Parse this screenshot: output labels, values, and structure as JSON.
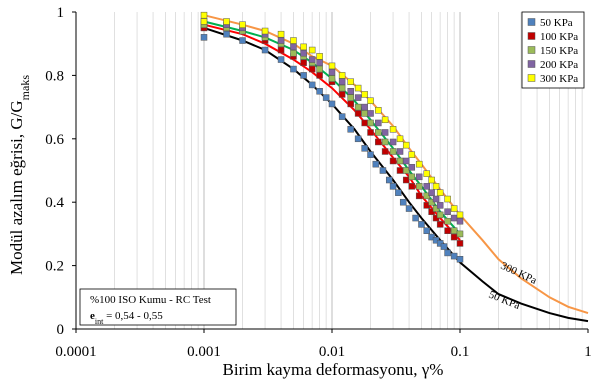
{
  "chart_data": {
    "type": "scatter",
    "x_scale": "log",
    "xlim": [
      0.0001,
      1
    ],
    "ylim": [
      0,
      1
    ],
    "x_ticks": [
      "0.0001",
      "0.001",
      "0.01",
      "0.1",
      "1"
    ],
    "y_ticks": [
      "0",
      "0.2",
      "0.4",
      "0.6",
      "0.8",
      "1"
    ],
    "xlabel": "Birim kayma deformasyonu, γ%",
    "ylabel_main": "Modül azalım eğrisi, G/G",
    "ylabel_sub": "maks",
    "grid": "x-minor-log-only",
    "legend_position": "top-right",
    "series": [
      {
        "name": "50 KPa",
        "color": "#4f81bd",
        "points": [
          [
            0.001,
            0.92
          ],
          [
            0.001,
            0.95
          ],
          [
            0.0015,
            0.93
          ],
          [
            0.002,
            0.91
          ],
          [
            0.003,
            0.88
          ],
          [
            0.004,
            0.85
          ],
          [
            0.005,
            0.82
          ],
          [
            0.006,
            0.8
          ],
          [
            0.007,
            0.77
          ],
          [
            0.008,
            0.75
          ],
          [
            0.009,
            0.73
          ],
          [
            0.01,
            0.71
          ],
          [
            0.012,
            0.67
          ],
          [
            0.014,
            0.63
          ],
          [
            0.016,
            0.6
          ],
          [
            0.018,
            0.57
          ],
          [
            0.02,
            0.55
          ],
          [
            0.022,
            0.52
          ],
          [
            0.025,
            0.5
          ],
          [
            0.028,
            0.47
          ],
          [
            0.03,
            0.45
          ],
          [
            0.033,
            0.43
          ],
          [
            0.036,
            0.4
          ],
          [
            0.04,
            0.38
          ],
          [
            0.045,
            0.35
          ],
          [
            0.05,
            0.33
          ],
          [
            0.055,
            0.31
          ],
          [
            0.06,
            0.29
          ],
          [
            0.065,
            0.28
          ],
          [
            0.07,
            0.27
          ],
          [
            0.075,
            0.26
          ],
          [
            0.08,
            0.24
          ],
          [
            0.09,
            0.23
          ],
          [
            0.1,
            0.22
          ]
        ]
      },
      {
        "name": "100 KPa",
        "color": "#c00000",
        "points": [
          [
            0.001,
            0.95
          ],
          [
            0.0015,
            0.96
          ],
          [
            0.002,
            0.94
          ],
          [
            0.003,
            0.91
          ],
          [
            0.004,
            0.88
          ],
          [
            0.005,
            0.86
          ],
          [
            0.006,
            0.84
          ],
          [
            0.007,
            0.82
          ],
          [
            0.008,
            0.8
          ],
          [
            0.01,
            0.78
          ],
          [
            0.012,
            0.74
          ],
          [
            0.014,
            0.71
          ],
          [
            0.016,
            0.68
          ],
          [
            0.018,
            0.65
          ],
          [
            0.02,
            0.62
          ],
          [
            0.023,
            0.59
          ],
          [
            0.026,
            0.56
          ],
          [
            0.03,
            0.53
          ],
          [
            0.034,
            0.5
          ],
          [
            0.038,
            0.47
          ],
          [
            0.042,
            0.45
          ],
          [
            0.048,
            0.42
          ],
          [
            0.055,
            0.39
          ],
          [
            0.06,
            0.37
          ],
          [
            0.065,
            0.35
          ],
          [
            0.07,
            0.33
          ],
          [
            0.08,
            0.31
          ],
          [
            0.09,
            0.29
          ],
          [
            0.1,
            0.27
          ]
        ]
      },
      {
        "name": "150 KPa",
        "color": "#9bbb59",
        "points": [
          [
            0.001,
            0.96
          ],
          [
            0.0015,
            0.95
          ],
          [
            0.002,
            0.94
          ],
          [
            0.003,
            0.92
          ],
          [
            0.004,
            0.9
          ],
          [
            0.005,
            0.87
          ],
          [
            0.006,
            0.86
          ],
          [
            0.007,
            0.84
          ],
          [
            0.008,
            0.82
          ],
          [
            0.01,
            0.79
          ],
          [
            0.012,
            0.76
          ],
          [
            0.014,
            0.73
          ],
          [
            0.016,
            0.7
          ],
          [
            0.018,
            0.68
          ],
          [
            0.02,
            0.65
          ],
          [
            0.023,
            0.62
          ],
          [
            0.026,
            0.59
          ],
          [
            0.03,
            0.56
          ],
          [
            0.034,
            0.53
          ],
          [
            0.038,
            0.5
          ],
          [
            0.042,
            0.48
          ],
          [
            0.048,
            0.45
          ],
          [
            0.055,
            0.42
          ],
          [
            0.06,
            0.4
          ],
          [
            0.065,
            0.38
          ],
          [
            0.07,
            0.36
          ],
          [
            0.08,
            0.34
          ],
          [
            0.09,
            0.31
          ],
          [
            0.1,
            0.3
          ]
        ]
      },
      {
        "name": "200 KPa",
        "color": "#8064a2",
        "points": [
          [
            0.001,
            0.97
          ],
          [
            0.0015,
            0.96
          ],
          [
            0.002,
            0.95
          ],
          [
            0.003,
            0.93
          ],
          [
            0.004,
            0.91
          ],
          [
            0.005,
            0.89
          ],
          [
            0.006,
            0.87
          ],
          [
            0.007,
            0.85
          ],
          [
            0.008,
            0.84
          ],
          [
            0.01,
            0.81
          ],
          [
            0.012,
            0.78
          ],
          [
            0.014,
            0.75
          ],
          [
            0.016,
            0.73
          ],
          [
            0.018,
            0.7
          ],
          [
            0.02,
            0.68
          ],
          [
            0.023,
            0.65
          ],
          [
            0.026,
            0.62
          ],
          [
            0.03,
            0.59
          ],
          [
            0.034,
            0.56
          ],
          [
            0.038,
            0.53
          ],
          [
            0.042,
            0.51
          ],
          [
            0.048,
            0.48
          ],
          [
            0.055,
            0.45
          ],
          [
            0.06,
            0.43
          ],
          [
            0.065,
            0.41
          ],
          [
            0.07,
            0.39
          ],
          [
            0.08,
            0.37
          ],
          [
            0.09,
            0.35
          ],
          [
            0.1,
            0.34
          ]
        ]
      },
      {
        "name": "300 KPa",
        "color": "#ffff00",
        "points": [
          [
            0.001,
            0.99
          ],
          [
            0.001,
            0.97
          ],
          [
            0.0015,
            0.97
          ],
          [
            0.002,
            0.96
          ],
          [
            0.003,
            0.94
          ],
          [
            0.004,
            0.93
          ],
          [
            0.005,
            0.91
          ],
          [
            0.006,
            0.89
          ],
          [
            0.007,
            0.88
          ],
          [
            0.008,
            0.86
          ],
          [
            0.01,
            0.83
          ],
          [
            0.012,
            0.8
          ],
          [
            0.014,
            0.78
          ],
          [
            0.016,
            0.76
          ],
          [
            0.018,
            0.74
          ],
          [
            0.02,
            0.72
          ],
          [
            0.023,
            0.69
          ],
          [
            0.026,
            0.66
          ],
          [
            0.03,
            0.63
          ],
          [
            0.034,
            0.6
          ],
          [
            0.038,
            0.58
          ],
          [
            0.042,
            0.55
          ],
          [
            0.048,
            0.52
          ],
          [
            0.055,
            0.49
          ],
          [
            0.06,
            0.47
          ],
          [
            0.065,
            0.45
          ],
          [
            0.07,
            0.43
          ],
          [
            0.08,
            0.41
          ],
          [
            0.09,
            0.38
          ],
          [
            0.1,
            0.36
          ]
        ]
      }
    ],
    "curves": [
      {
        "label": "300 KPa",
        "color": "#f79646",
        "points": [
          [
            0.001,
            0.99
          ],
          [
            0.002,
            0.96
          ],
          [
            0.003,
            0.94
          ],
          [
            0.005,
            0.9
          ],
          [
            0.007,
            0.86
          ],
          [
            0.01,
            0.83
          ],
          [
            0.015,
            0.77
          ],
          [
            0.02,
            0.72
          ],
          [
            0.03,
            0.64
          ],
          [
            0.04,
            0.57
          ],
          [
            0.05,
            0.52
          ],
          [
            0.07,
            0.44
          ],
          [
            0.1,
            0.36
          ],
          [
            0.15,
            0.28
          ],
          [
            0.2,
            0.22
          ],
          [
            0.3,
            0.16
          ],
          [
            0.5,
            0.1
          ],
          [
            0.7,
            0.07
          ],
          [
            1,
            0.05
          ]
        ]
      },
      {
        "label": "",
        "color": "#00b050",
        "points": [
          [
            0.001,
            0.97
          ],
          [
            0.002,
            0.94
          ],
          [
            0.003,
            0.92
          ],
          [
            0.005,
            0.88
          ],
          [
            0.007,
            0.84
          ],
          [
            0.01,
            0.79
          ],
          [
            0.015,
            0.72
          ],
          [
            0.02,
            0.66
          ],
          [
            0.03,
            0.57
          ],
          [
            0.04,
            0.5
          ],
          [
            0.05,
            0.45
          ],
          [
            0.07,
            0.37
          ],
          [
            0.1,
            0.3
          ]
        ]
      },
      {
        "label": "",
        "color": "#ff0000",
        "points": [
          [
            0.001,
            0.96
          ],
          [
            0.002,
            0.93
          ],
          [
            0.003,
            0.9
          ],
          [
            0.005,
            0.85
          ],
          [
            0.007,
            0.81
          ],
          [
            0.01,
            0.76
          ],
          [
            0.015,
            0.69
          ],
          [
            0.02,
            0.63
          ],
          [
            0.03,
            0.54
          ],
          [
            0.04,
            0.48
          ],
          [
            0.05,
            0.42
          ],
          [
            0.07,
            0.35
          ],
          [
            0.1,
            0.28
          ]
        ]
      },
      {
        "label": "50 KPa",
        "color": "#000000",
        "points": [
          [
            0.001,
            0.95
          ],
          [
            0.002,
            0.91
          ],
          [
            0.003,
            0.88
          ],
          [
            0.005,
            0.82
          ],
          [
            0.007,
            0.77
          ],
          [
            0.01,
            0.71
          ],
          [
            0.015,
            0.63
          ],
          [
            0.02,
            0.56
          ],
          [
            0.03,
            0.47
          ],
          [
            0.04,
            0.4
          ],
          [
            0.05,
            0.35
          ],
          [
            0.07,
            0.28
          ],
          [
            0.1,
            0.21
          ],
          [
            0.15,
            0.15
          ],
          [
            0.2,
            0.11
          ],
          [
            0.3,
            0.08
          ],
          [
            0.5,
            0.05
          ],
          [
            0.7,
            0.035
          ],
          [
            1,
            0.025
          ]
        ]
      }
    ],
    "annotation": {
      "line1": "%100 ISO Kumu - RC Test",
      "line2_main": "e",
      "line2_sub": "int",
      "line2_rest": " = 0,54 - 0,55"
    }
  }
}
